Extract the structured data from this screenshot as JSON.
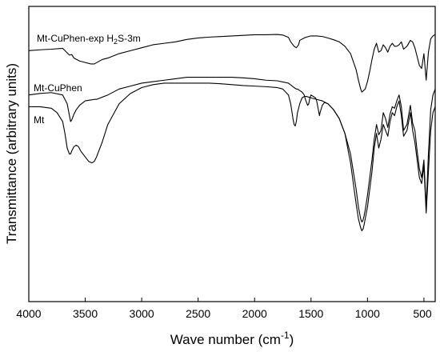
{
  "chart_data": {
    "type": "line",
    "title": "",
    "xlabel_main": "Wave number (cm",
    "xlabel_sup": "-1",
    "xlabel_end": ")",
    "ylabel": "Transmittance (arbitrary units)",
    "xlim": [
      4000,
      400
    ],
    "x_reversed": true,
    "y_ticks_labeled": false,
    "grid": false,
    "x_ticks": [
      "4000",
      "3500",
      "3000",
      "2500",
      "2000",
      "1500",
      "1000",
      "500"
    ],
    "x_tick_values": [
      4000,
      3500,
      3000,
      2500,
      2000,
      1500,
      1000,
      500
    ],
    "ylim": [
      0,
      100
    ],
    "series": [
      {
        "name": "Mt-CuPhen-exp H2S-3m",
        "label_main": "Mt-CuPhen-exp H",
        "label_sub": "2",
        "label_end": "S-3m",
        "x": [
          4000,
          3900,
          3800,
          3700,
          3640,
          3620,
          3600,
          3550,
          3500,
          3450,
          3420,
          3350,
          3300,
          3200,
          3100,
          3000,
          2900,
          2800,
          2700,
          2600,
          2500,
          2400,
          2300,
          2200,
          2100,
          2000,
          1900,
          1800,
          1750,
          1700,
          1680,
          1650,
          1630,
          1610,
          1600,
          1550,
          1500,
          1450,
          1400,
          1350,
          1300,
          1250,
          1200,
          1150,
          1100,
          1080,
          1060,
          1050,
          1040,
          1020,
          1000,
          980,
          960,
          940,
          920,
          900,
          880,
          860,
          840,
          820,
          800,
          780,
          760,
          740,
          720,
          700,
          680,
          650,
          620,
          600,
          580,
          560,
          540,
          520,
          500,
          480,
          460,
          440,
          420,
          400
        ],
        "y": [
          85.0,
          85.3,
          85.5,
          85.8,
          83.5,
          83.7,
          82.5,
          81.5,
          81.0,
          80.5,
          80.5,
          82.0,
          82.5,
          84.0,
          85.0,
          86.0,
          87.0,
          87.5,
          88.0,
          88.8,
          89.3,
          89.6,
          89.8,
          90.0,
          90.2,
          90.4,
          90.4,
          90.5,
          90.3,
          89.5,
          88.0,
          86.5,
          86.0,
          87.0,
          88.5,
          89.5,
          90.0,
          90.0,
          89.8,
          89.3,
          88.7,
          88.0,
          86.5,
          84.0,
          78.5,
          75.0,
          72.0,
          71.0,
          71.3,
          72.0,
          74.5,
          78.0,
          82.0,
          85.5,
          87.5,
          84.5,
          85.0,
          87.0,
          86.0,
          84.5,
          86.5,
          87.5,
          86.5,
          86.5,
          87.0,
          88.0,
          85.5,
          86.5,
          88.5,
          88.0,
          86.0,
          83.0,
          80.0,
          79.0,
          84.0,
          75.0,
          84.5,
          89.0,
          90.0,
          90.5
        ]
      },
      {
        "name": "Mt-CuPhen",
        "label_main": "Mt-CuPhen",
        "label_sub": "",
        "label_end": "",
        "x": [
          4000,
          3900,
          3800,
          3700,
          3660,
          3640,
          3630,
          3620,
          3600,
          3580,
          3550,
          3500,
          3450,
          3420,
          3400,
          3300,
          3200,
          3100,
          3000,
          2900,
          2800,
          2700,
          2600,
          2500,
          2400,
          2300,
          2200,
          2100,
          2000,
          1900,
          1800,
          1700,
          1650,
          1630,
          1620,
          1600,
          1580,
          1560,
          1550,
          1530,
          1520,
          1510,
          1500,
          1480,
          1460,
          1450,
          1440,
          1430,
          1425,
          1420,
          1400,
          1380,
          1350,
          1300,
          1250,
          1200,
          1150,
          1100,
          1080,
          1060,
          1050,
          1040,
          1030,
          1020,
          1000,
          980,
          960,
          940,
          920,
          900,
          880,
          860,
          840,
          820,
          800,
          780,
          760,
          740,
          720,
          700,
          680,
          650,
          620,
          600,
          580,
          560,
          540,
          520,
          500,
          480,
          460,
          440,
          420,
          400
        ],
        "y": [
          70.0,
          70.5,
          70.8,
          70.0,
          67.0,
          63.0,
          61.0,
          61.5,
          63.5,
          65.0,
          66.5,
          68.0,
          68.3,
          68.5,
          68.5,
          70.0,
          72.0,
          73.0,
          74.0,
          74.5,
          75.0,
          75.5,
          76.0,
          76.0,
          76.0,
          76.0,
          76.0,
          75.8,
          75.5,
          75.0,
          74.8,
          74.0,
          72.5,
          72.0,
          72.0,
          71.5,
          71.0,
          70.0,
          68.5,
          66.5,
          67.0,
          69.0,
          70.0,
          69.5,
          69.0,
          68.0,
          66.0,
          64.0,
          63.0,
          64.0,
          66.5,
          67.5,
          67.0,
          65.0,
          62.0,
          57.0,
          50.0,
          38.0,
          32.0,
          28.0,
          27.0,
          27.5,
          29.0,
          31.0,
          36.0,
          42.0,
          48.0,
          55.0,
          60.0,
          56.5,
          58.0,
          64.0,
          62.0,
          59.0,
          63.5,
          66.0,
          65.5,
          68.0,
          70.0,
          66.0,
          58.0,
          60.0,
          66.5,
          60.5,
          58.0,
          51.0,
          45.0,
          42.0,
          48.0,
          32.0,
          50.0,
          65.0,
          70.0,
          72.0
        ]
      },
      {
        "name": "Mt",
        "label_main": "Mt",
        "label_sub": "",
        "label_end": "",
        "x": [
          4000,
          3900,
          3800,
          3750,
          3700,
          3680,
          3660,
          3640,
          3630,
          3620,
          3600,
          3580,
          3560,
          3540,
          3500,
          3470,
          3440,
          3420,
          3400,
          3350,
          3300,
          3200,
          3100,
          3000,
          2900,
          2800,
          2700,
          2600,
          2500,
          2400,
          2300,
          2200,
          2100,
          2000,
          1900,
          1800,
          1750,
          1700,
          1680,
          1660,
          1650,
          1640,
          1630,
          1620,
          1600,
          1580,
          1560,
          1540,
          1500,
          1450,
          1400,
          1350,
          1300,
          1250,
          1200,
          1150,
          1100,
          1080,
          1060,
          1050,
          1040,
          1030,
          1020,
          1000,
          980,
          960,
          940,
          920,
          900,
          880,
          860,
          840,
          820,
          800,
          780,
          760,
          740,
          720,
          700,
          680,
          650,
          620,
          600,
          580,
          560,
          540,
          520,
          500,
          480,
          460,
          440,
          420,
          400
        ],
        "y": [
          66.0,
          66.0,
          65.5,
          64.0,
          61.0,
          57.0,
          52.0,
          50.0,
          50.0,
          51.0,
          52.5,
          53.0,
          52.5,
          51.0,
          49.0,
          47.5,
          47.0,
          47.5,
          49.0,
          54.0,
          60.0,
          67.0,
          70.5,
          72.5,
          73.5,
          74.0,
          74.0,
          74.0,
          74.0,
          74.0,
          73.8,
          73.5,
          73.2,
          73.0,
          72.8,
          72.5,
          72.0,
          70.0,
          67.0,
          62.0,
          60.0,
          59.5,
          61.0,
          64.0,
          67.0,
          69.0,
          69.5,
          69.5,
          69.0,
          68.5,
          68.0,
          67.0,
          65.0,
          62.0,
          57.0,
          47.0,
          33.0,
          28.0,
          25.0,
          24.0,
          24.5,
          26.0,
          28.0,
          32.0,
          38.0,
          44.0,
          52.0,
          57.0,
          52.0,
          55.0,
          60.0,
          58.0,
          56.0,
          61.0,
          64.0,
          63.0,
          66.0,
          68.0,
          63.0,
          56.0,
          58.0,
          64.0,
          58.0,
          54.0,
          48.0,
          42.0,
          40.0,
          46.0,
          30.0,
          44.0,
          58.0,
          64.0,
          66.0
        ]
      }
    ]
  }
}
